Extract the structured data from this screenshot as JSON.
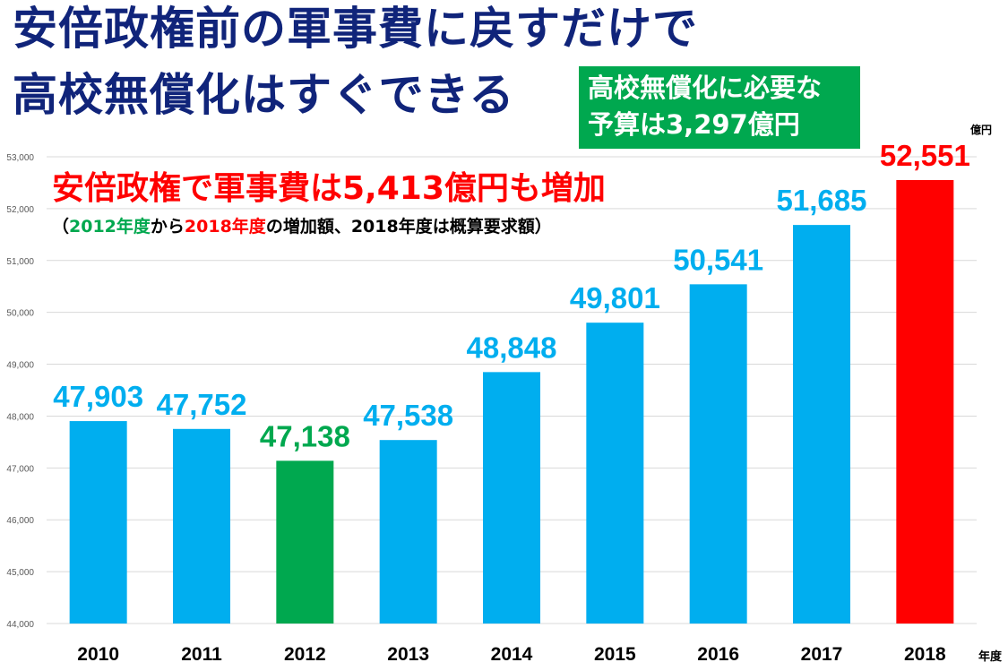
{
  "title": {
    "line1": "安倍政権前の軍事費に戻すだけで",
    "line2": "高校無償化はすぐできる"
  },
  "callout": {
    "line1": "高校無償化に必要な",
    "line2": "予算は3,297億円"
  },
  "note": {
    "main": "安倍政権で軍事費は5,413億円も増加",
    "sub": {
      "open": "（",
      "year_from": "2012年度",
      "from_word": "から",
      "year_to": "2018年度",
      "rest": "の増加額、2018年度は概算要求額）"
    }
  },
  "units": {
    "value": "億円",
    "year": "年度"
  },
  "colors": {
    "default_bar": "#00aeef",
    "highlight_2012": "#00a84f",
    "highlight_2018": "#ff0000",
    "title": "#10247a",
    "grid": "#d9d9d9"
  },
  "chart_data": {
    "type": "bar",
    "categories": [
      "2010",
      "2011",
      "2012",
      "2013",
      "2014",
      "2015",
      "2016",
      "2017",
      "2018"
    ],
    "values": [
      47903,
      47752,
      47138,
      47538,
      48848,
      49801,
      50541,
      51685,
      52551
    ],
    "value_labels": [
      "47,903",
      "47,752",
      "47,138",
      "47,538",
      "48,848",
      "49,801",
      "50,541",
      "51,685",
      "52,551"
    ],
    "bar_colors": [
      "#00aeef",
      "#00aeef",
      "#00a84f",
      "#00aeef",
      "#00aeef",
      "#00aeef",
      "#00aeef",
      "#00aeef",
      "#ff0000"
    ],
    "ylim": [
      44000,
      53000
    ],
    "yticks": [
      44000,
      45000,
      46000,
      47000,
      48000,
      49000,
      50000,
      51000,
      52000,
      53000
    ],
    "ytick_labels": [
      "44,000",
      "45,000",
      "46,000",
      "47,000",
      "48,000",
      "49,000",
      "50,000",
      "51,000",
      "52,000",
      "53,000"
    ],
    "grid": true,
    "legend": "none"
  }
}
